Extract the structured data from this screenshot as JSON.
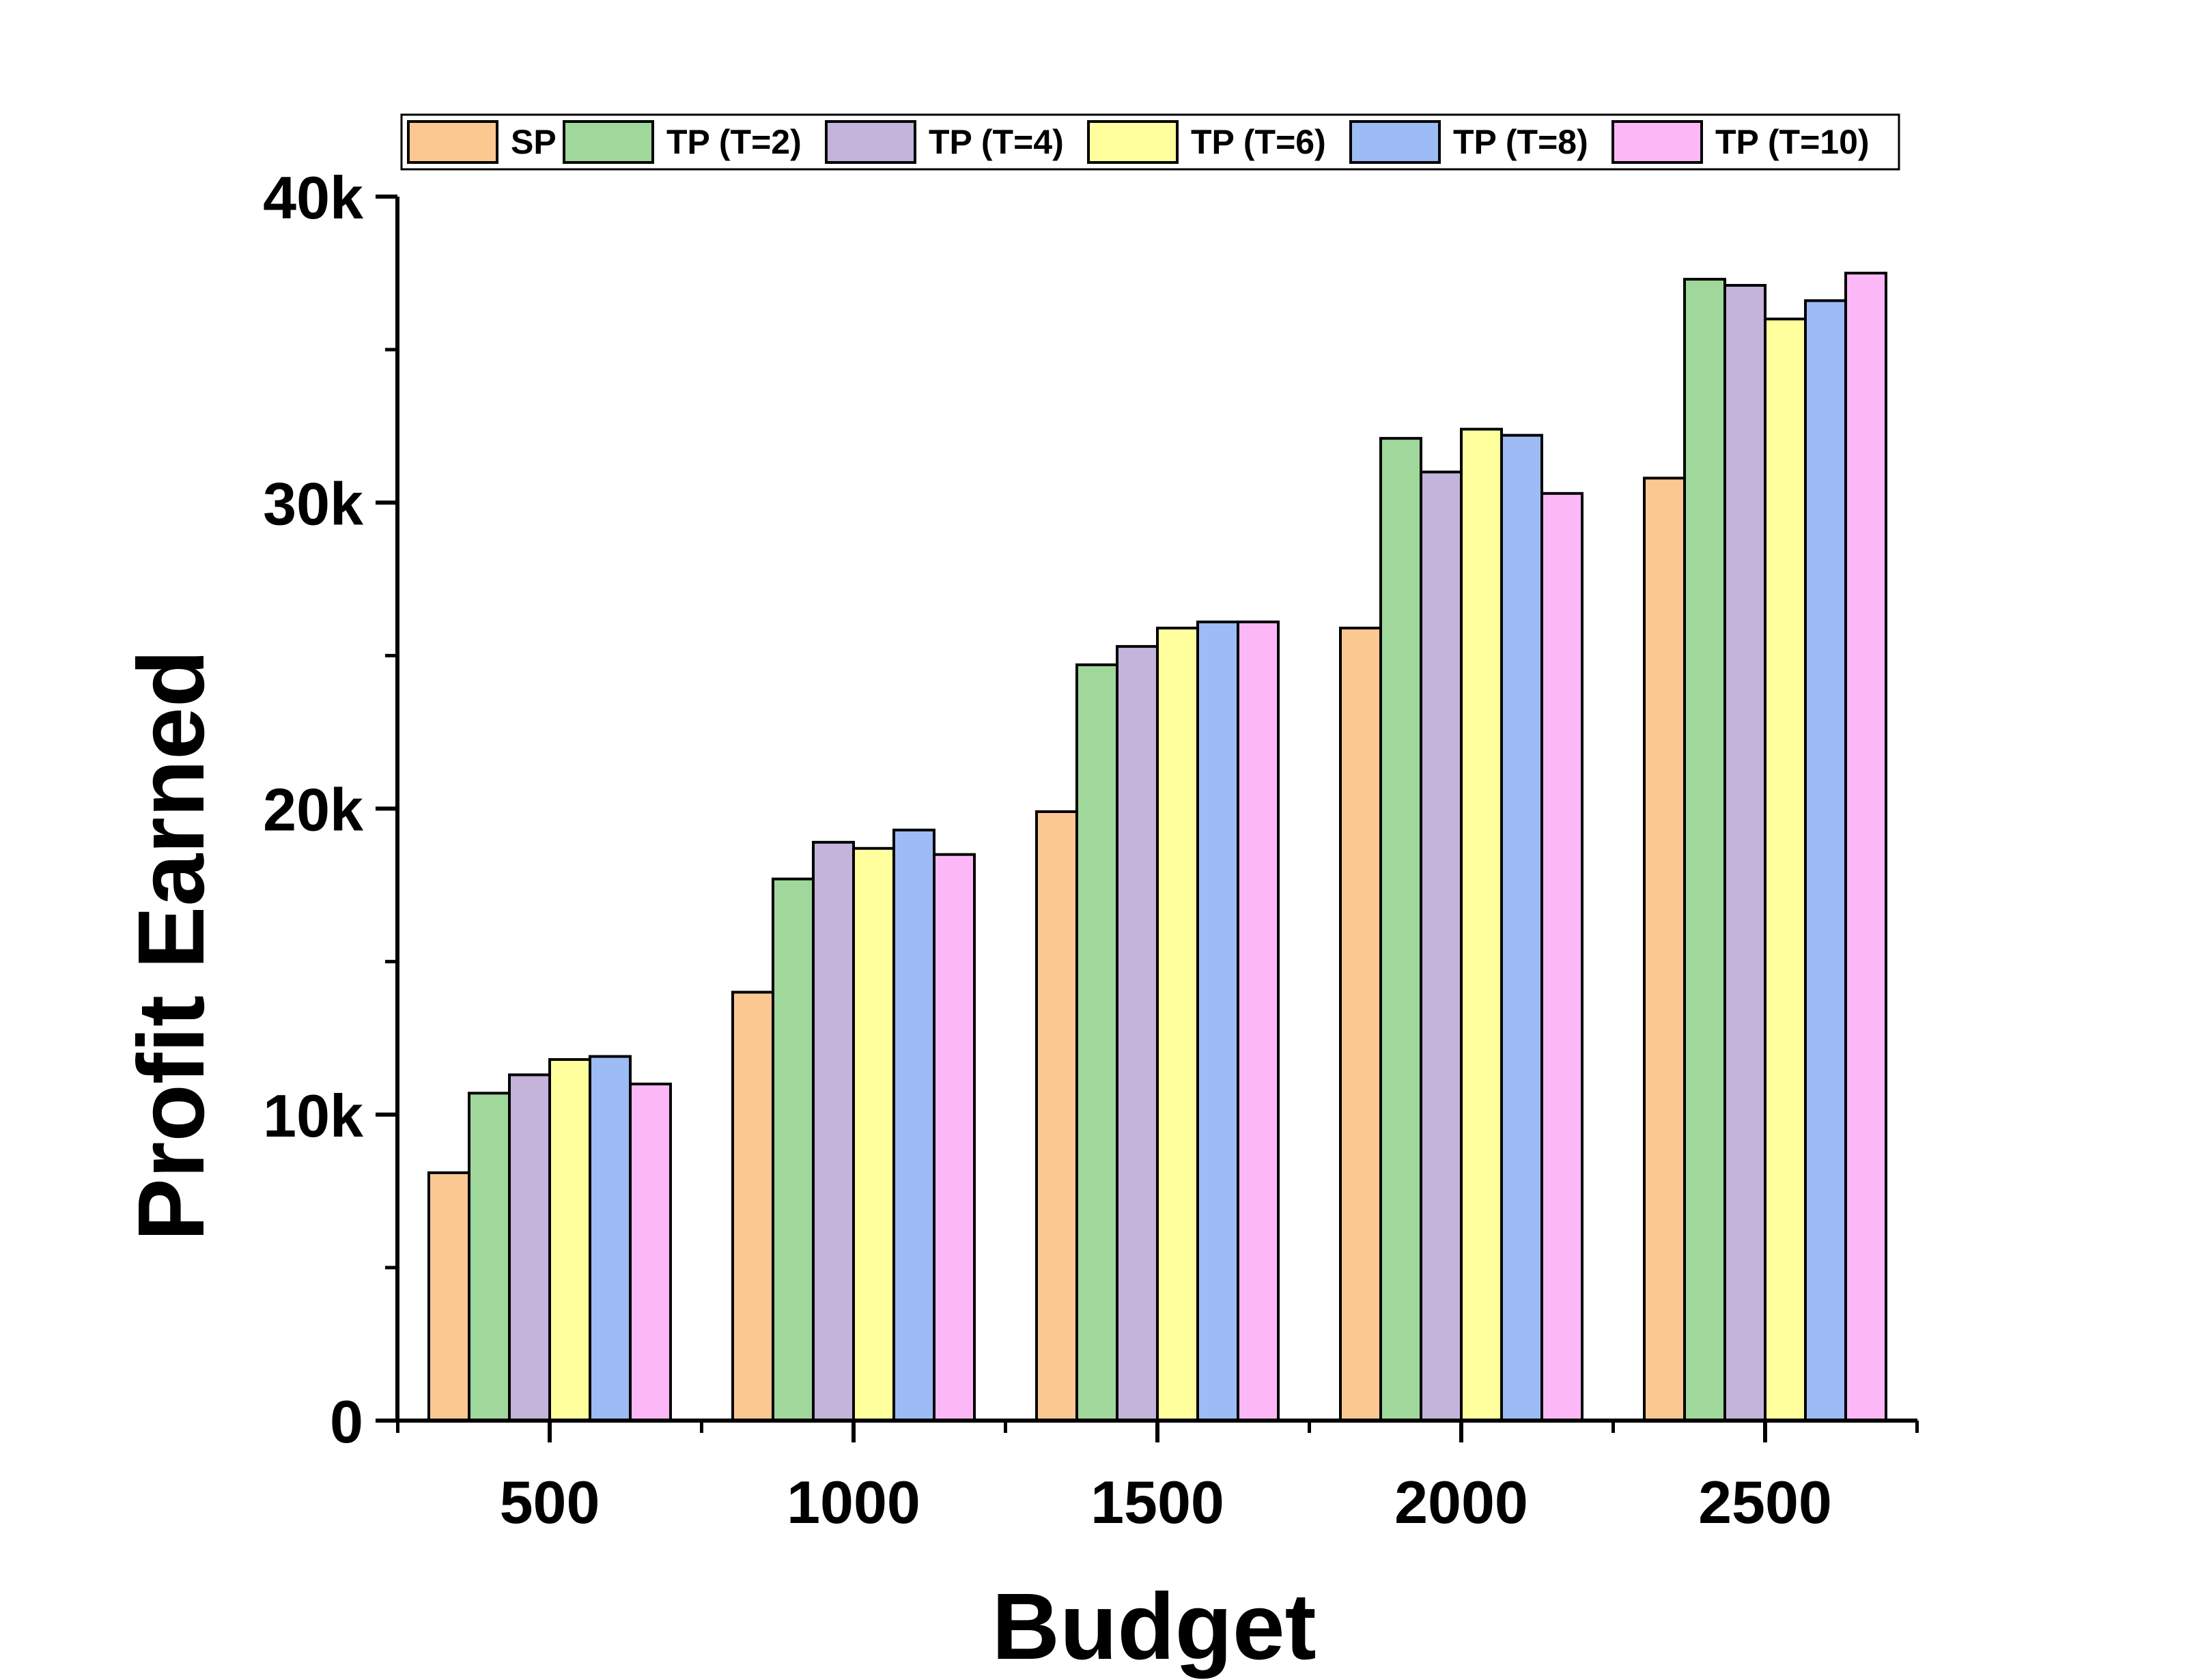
{
  "chart_data": {
    "type": "bar",
    "title": "",
    "xlabel": "Budget",
    "ylabel": "Profit Earned",
    "categories": [
      "500",
      "1000",
      "1500",
      "2000",
      "2500"
    ],
    "ylim": [
      0,
      40000
    ],
    "y_ticks": [
      {
        "value": 0,
        "label": "0"
      },
      {
        "value": 10000,
        "label": "10k"
      },
      {
        "value": 20000,
        "label": "20k"
      },
      {
        "value": 30000,
        "label": "30k"
      },
      {
        "value": 40000,
        "label": "40k"
      }
    ],
    "y_minor_ticks": [
      5000,
      15000,
      25000,
      35000
    ],
    "grid": false,
    "legend_position": "top",
    "series": [
      {
        "name": "SP",
        "color": "#FCC892",
        "values": [
          8100,
          14000,
          19900,
          25900,
          30800
        ]
      },
      {
        "name": "TP (T=2)",
        "color": "#A0D89C",
        "values": [
          10700,
          17700,
          24700,
          32100,
          37300
        ]
      },
      {
        "name": "TP (T=4)",
        "color": "#C4B3DA",
        "values": [
          11300,
          18900,
          25300,
          31000,
          37100
        ]
      },
      {
        "name": "TP (T=6)",
        "color": "#FFFF9E",
        "values": [
          11800,
          18700,
          25900,
          32400,
          36000
        ]
      },
      {
        "name": "TP (T=8)",
        "color": "#9DBBF5",
        "values": [
          11900,
          19300,
          26100,
          32200,
          36600
        ]
      },
      {
        "name": "TP (T=10)",
        "color": "#FCB8F6",
        "values": [
          11000,
          18500,
          26100,
          30300,
          37500
        ]
      }
    ]
  }
}
